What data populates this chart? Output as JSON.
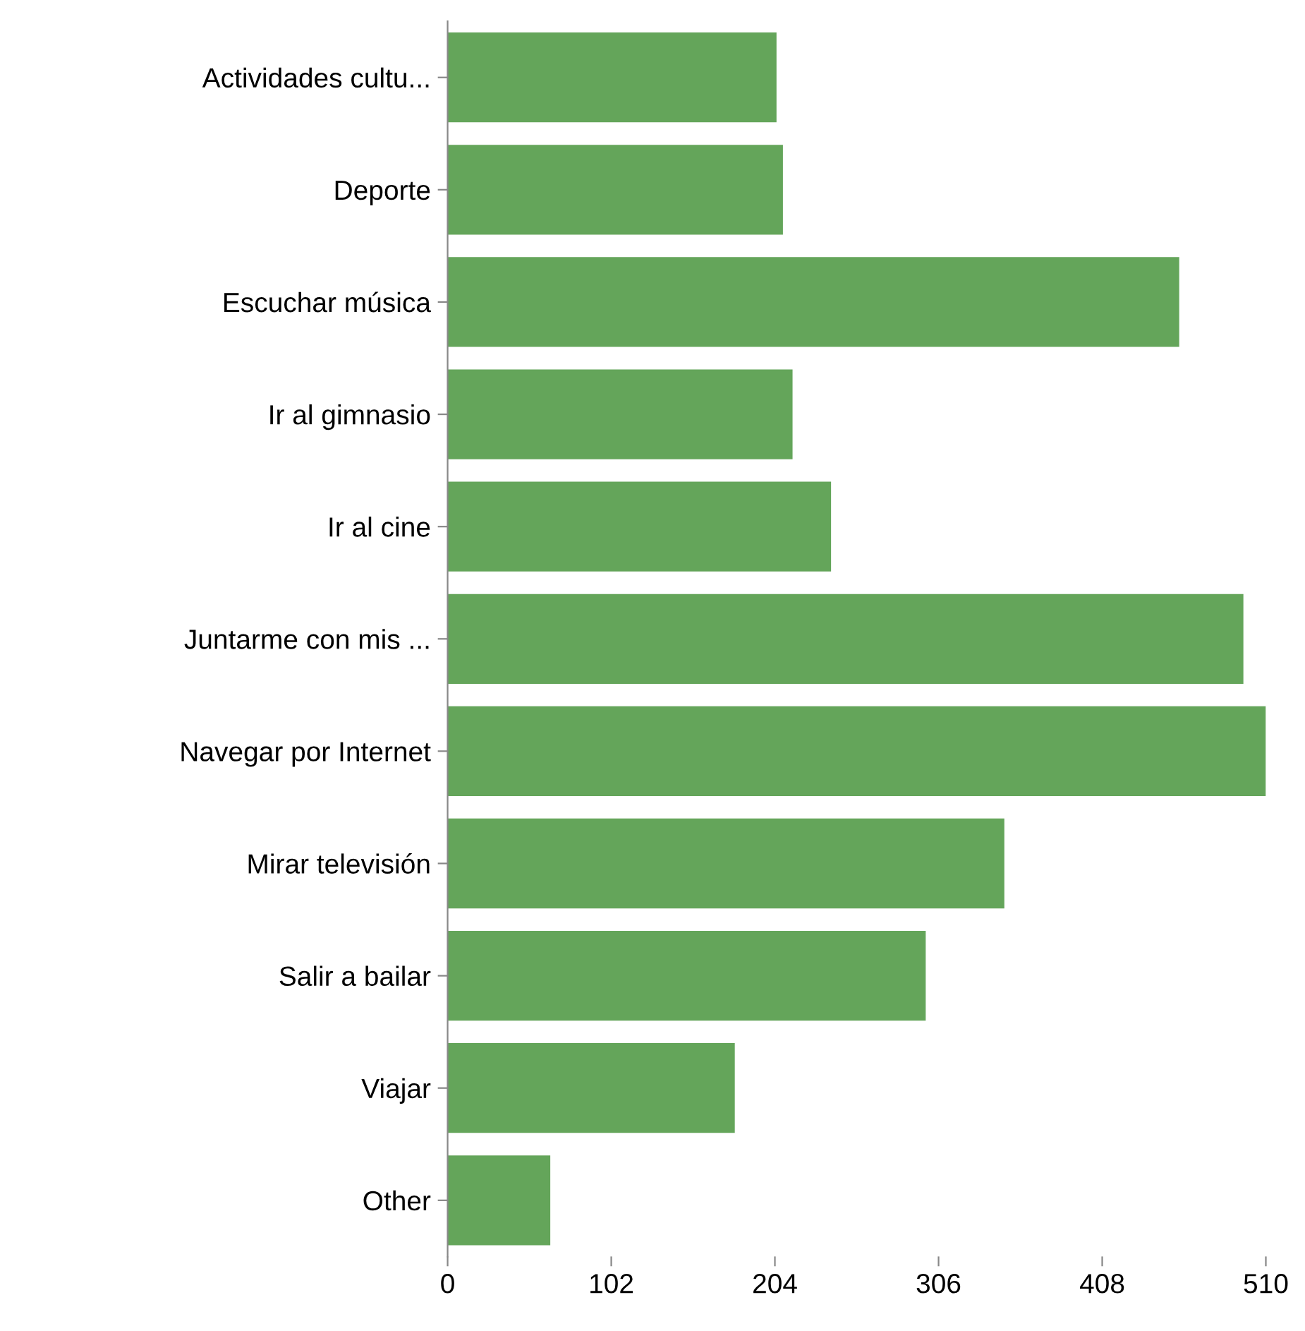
{
  "chart_data": {
    "type": "bar",
    "orientation": "horizontal",
    "categories": [
      "Actividades cultu...",
      "Deporte",
      "Escuchar música",
      "Ir al gimnasio",
      "Ir al cine",
      "Juntarme con mis ...",
      "Navegar por Internet",
      "Mirar televisión",
      "Salir a bailar",
      "Viajar",
      "Other"
    ],
    "values": [
      205,
      209,
      456,
      215,
      239,
      496,
      510,
      347,
      298,
      179,
      64
    ],
    "color": "#64a55a",
    "xlim": [
      0,
      510
    ],
    "xticks": [
      0,
      102,
      204,
      306,
      408,
      510
    ],
    "grid": false
  }
}
